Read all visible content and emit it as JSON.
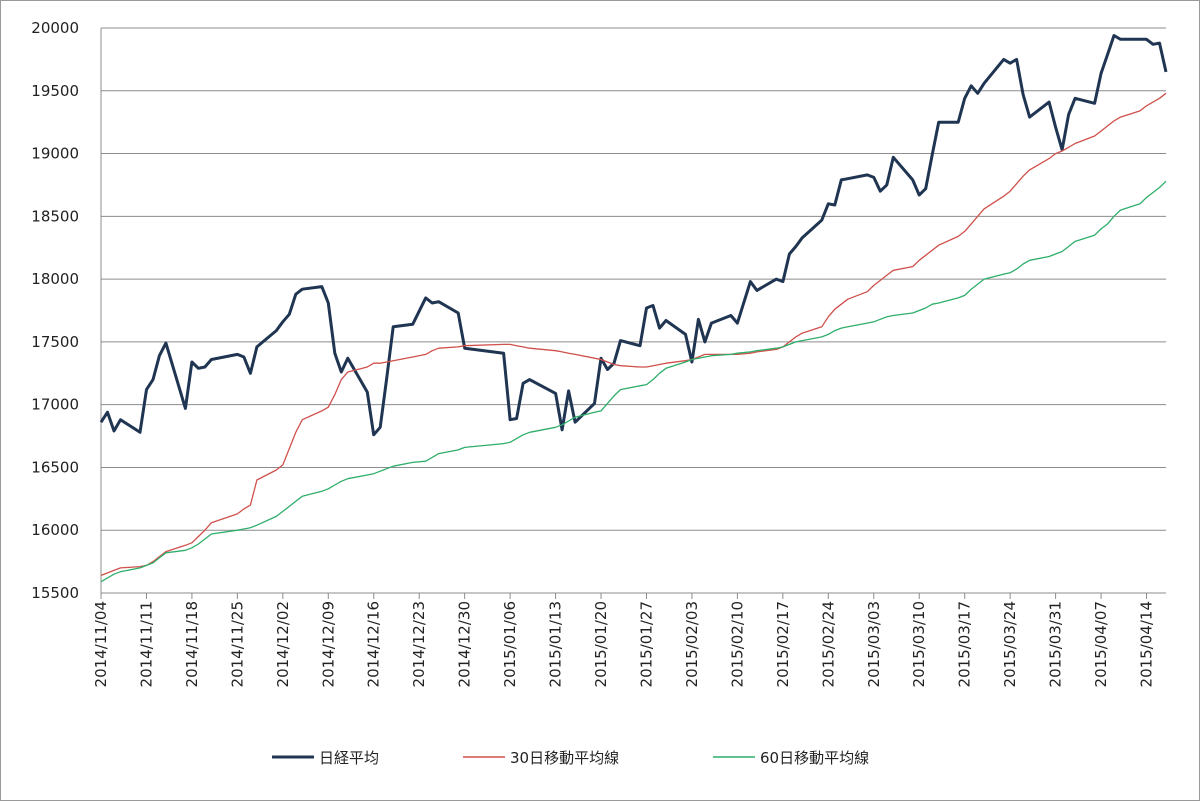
{
  "chart_data": {
    "type": "line",
    "x": [
      "2014/11/04",
      "2014/11/05",
      "2014/11/06",
      "2014/11/07",
      "2014/11/10",
      "2014/11/11",
      "2014/11/12",
      "2014/11/13",
      "2014/11/14",
      "2014/11/17",
      "2014/11/18",
      "2014/11/19",
      "2014/11/20",
      "2014/11/21",
      "2014/11/25",
      "2014/11/26",
      "2014/11/27",
      "2014/11/28",
      "2014/12/01",
      "2014/12/02",
      "2014/12/03",
      "2014/12/04",
      "2014/12/05",
      "2014/12/08",
      "2014/12/09",
      "2014/12/10",
      "2014/12/11",
      "2014/12/12",
      "2014/12/15",
      "2014/12/16",
      "2014/12/17",
      "2014/12/18",
      "2014/12/19",
      "2014/12/22",
      "2014/12/24",
      "2014/12/25",
      "2014/12/26",
      "2014/12/29",
      "2014/12/30",
      "2015/01/05",
      "2015/01/06",
      "2015/01/07",
      "2015/01/08",
      "2015/01/09",
      "2015/01/13",
      "2015/01/14",
      "2015/01/15",
      "2015/01/16",
      "2015/01/19",
      "2015/01/20",
      "2015/01/21",
      "2015/01/22",
      "2015/01/23",
      "2015/01/26",
      "2015/01/27",
      "2015/01/28",
      "2015/01/29",
      "2015/01/30",
      "2015/02/02",
      "2015/02/03",
      "2015/02/04",
      "2015/02/05",
      "2015/02/06",
      "2015/02/09",
      "2015/02/10",
      "2015/02/12",
      "2015/02/13",
      "2015/02/16",
      "2015/02/17",
      "2015/02/18",
      "2015/02/19",
      "2015/02/20",
      "2015/02/23",
      "2015/02/24",
      "2015/02/25",
      "2015/02/26",
      "2015/02/27",
      "2015/03/02",
      "2015/03/03",
      "2015/03/04",
      "2015/03/05",
      "2015/03/06",
      "2015/03/09",
      "2015/03/10",
      "2015/03/11",
      "2015/03/12",
      "2015/03/13",
      "2015/03/16",
      "2015/03/17",
      "2015/03/18",
      "2015/03/19",
      "2015/03/20",
      "2015/03/23",
      "2015/03/24",
      "2015/03/25",
      "2015/03/26",
      "2015/03/27",
      "2015/03/30",
      "2015/03/31",
      "2015/04/01",
      "2015/04/02",
      "2015/04/03",
      "2015/04/06",
      "2015/04/07",
      "2015/04/08",
      "2015/04/09",
      "2015/04/10",
      "2015/04/13",
      "2015/04/14",
      "2015/04/15",
      "2015/04/16",
      "2015/04/17"
    ],
    "series": [
      {
        "name": "日経平均",
        "color": "#1f3552",
        "values": [
          16860,
          16940,
          16790,
          16880,
          16780,
          17120,
          17200,
          17390,
          17490,
          16970,
          17340,
          17290,
          17300,
          17360,
          17400,
          17380,
          17250,
          17460,
          17590,
          17660,
          17720,
          17880,
          17920,
          17940,
          17810,
          17410,
          17260,
          17370,
          17100,
          16760,
          16820,
          17210,
          17620,
          17640,
          17850,
          17810,
          17820,
          17730,
          17450,
          17410,
          16880,
          16890,
          17170,
          17200,
          17090,
          16800,
          17110,
          16860,
          17010,
          17370,
          17280,
          17330,
          17510,
          17470,
          17770,
          17790,
          17610,
          17670,
          17560,
          17340,
          17680,
          17500,
          17650,
          17710,
          17650,
          17980,
          17910,
          18000,
          17980,
          18200,
          18260,
          18330,
          18470,
          18600,
          18590,
          18790,
          18800,
          18830,
          18810,
          18700,
          18750,
          18970,
          18790,
          18670,
          18720,
          18990,
          19250,
          19250,
          19440,
          19540,
          19480,
          19560,
          19750,
          19720,
          19750,
          19470,
          19290,
          19410,
          19210,
          19030,
          19310,
          19440,
          19400,
          19640,
          19790,
          19940,
          19910,
          19910,
          19910,
          19870,
          19880,
          19650
        ]
      },
      {
        "name": "30日移動平均線",
        "color": "#d0504b",
        "values": [
          15640,
          15660,
          15680,
          15700,
          15710,
          15720,
          15750,
          15790,
          15830,
          15880,
          15900,
          15950,
          16000,
          16060,
          16130,
          16170,
          16200,
          16400,
          16480,
          16520,
          16650,
          16780,
          16880,
          16950,
          16980,
          17080,
          17200,
          17260,
          17300,
          17330,
          17330,
          17340,
          17350,
          17380,
          17400,
          17430,
          17450,
          17460,
          17470,
          17480,
          17480,
          17470,
          17460,
          17450,
          17430,
          17420,
          17410,
          17400,
          17370,
          17360,
          17340,
          17320,
          17310,
          17300,
          17300,
          17310,
          17320,
          17330,
          17350,
          17360,
          17380,
          17400,
          17400,
          17400,
          17400,
          17410,
          17420,
          17440,
          17460,
          17500,
          17540,
          17570,
          17620,
          17700,
          17760,
          17800,
          17840,
          17900,
          17950,
          17990,
          18030,
          18070,
          18100,
          18150,
          18190,
          18230,
          18270,
          18340,
          18380,
          18440,
          18500,
          18560,
          18660,
          18700,
          18760,
          18820,
          18870,
          18960,
          19000,
          19020,
          19050,
          19080,
          19140,
          19180,
          19220,
          19260,
          19290,
          19340,
          19380,
          19410,
          19440,
          19480
        ]
      },
      {
        "name": "60日移動平均線",
        "color": "#2fae6a",
        "values": [
          15590,
          15620,
          15650,
          15670,
          15700,
          15720,
          15740,
          15780,
          15820,
          15840,
          15860,
          15890,
          15930,
          15970,
          16000,
          16010,
          16020,
          16040,
          16110,
          16150,
          16190,
          16230,
          16270,
          16310,
          16330,
          16360,
          16390,
          16410,
          16440,
          16450,
          16470,
          16490,
          16510,
          16540,
          16550,
          16580,
          16610,
          16640,
          16660,
          16690,
          16700,
          16730,
          16760,
          16780,
          16820,
          16840,
          16870,
          16900,
          16940,
          16950,
          17010,
          17070,
          17120,
          17150,
          17160,
          17200,
          17250,
          17290,
          17340,
          17360,
          17370,
          17380,
          17390,
          17400,
          17410,
          17420,
          17430,
          17450,
          17460,
          17480,
          17500,
          17510,
          17540,
          17560,
          17590,
          17610,
          17620,
          17650,
          17660,
          17680,
          17700,
          17710,
          17730,
          17750,
          17770,
          17800,
          17810,
          17850,
          17870,
          17920,
          17960,
          18000,
          18040,
          18050,
          18080,
          18120,
          18150,
          18180,
          18200,
          18220,
          18260,
          18300,
          18350,
          18400,
          18440,
          18500,
          18550,
          18600,
          18650,
          18690,
          18730,
          18780
        ]
      }
    ],
    "xlim": [
      "2014/11/04",
      "2015/04/17"
    ],
    "xticks": [
      "2014/11/04",
      "2014/11/11",
      "2014/11/18",
      "2014/11/25",
      "2014/12/02",
      "2014/12/09",
      "2014/12/16",
      "2014/12/23",
      "2014/12/30",
      "2015/01/06",
      "2015/01/13",
      "2015/01/20",
      "2015/01/27",
      "2015/02/03",
      "2015/02/10",
      "2015/02/17",
      "2015/02/24",
      "2015/03/03",
      "2015/03/10",
      "2015/03/17",
      "2015/03/24",
      "2015/03/31",
      "2015/04/07",
      "2015/04/14"
    ],
    "ylim": [
      15500,
      20000
    ],
    "yticks": [
      15500,
      16000,
      16500,
      17000,
      17500,
      18000,
      18500,
      19000,
      19500,
      20000
    ],
    "grid": true,
    "legend": "bottom"
  }
}
